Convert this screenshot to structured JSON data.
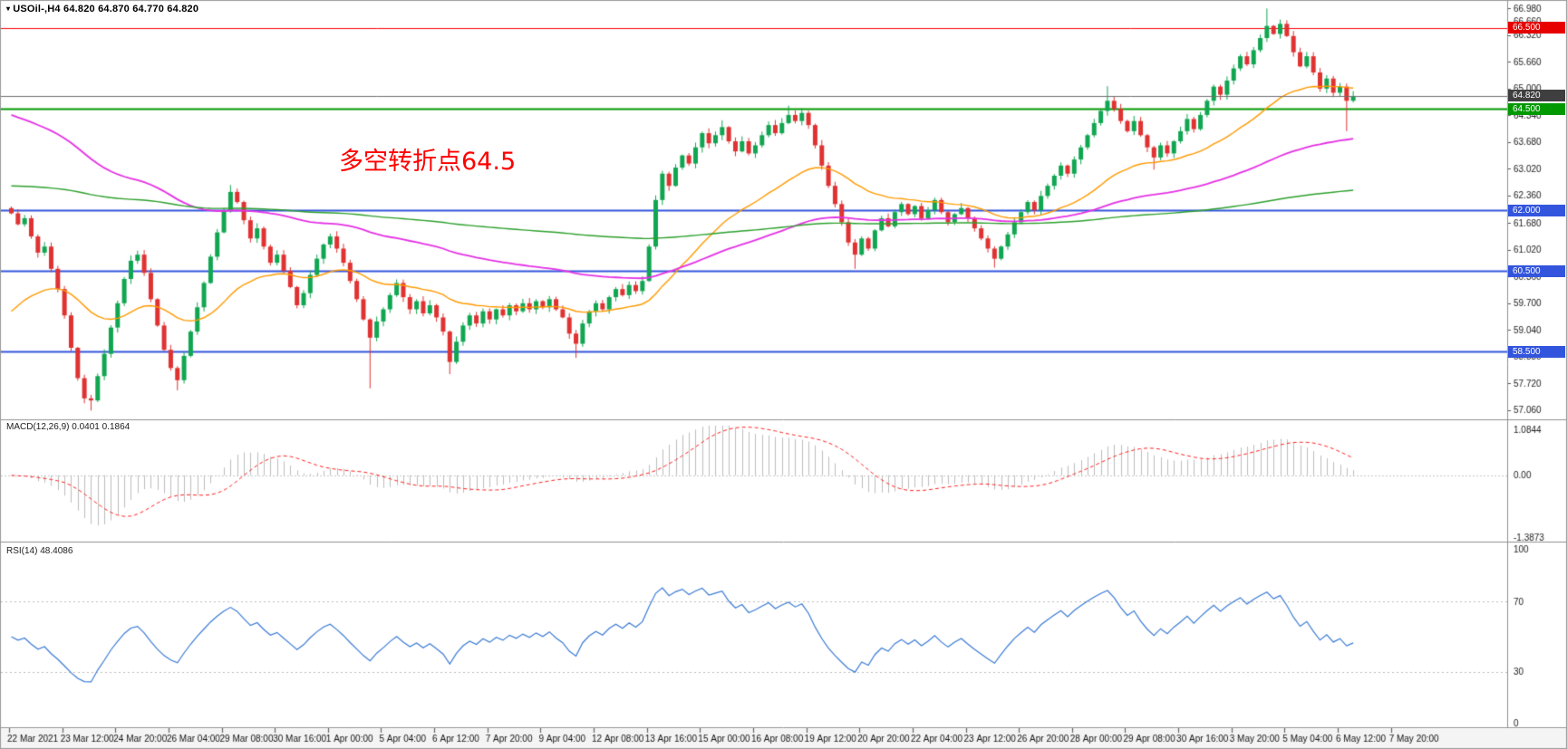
{
  "window": {
    "symbol_icon": "▾",
    "symbol_info": "USOil-,H4  64.820 64.870 64.770 64.820"
  },
  "annotation": {
    "text": "多空转折点64.5",
    "color": "#ff0000"
  },
  "panels": {
    "macd": {
      "label": "MACD(12,26,9) 0.0401 0.1864",
      "axis_labels": [
        "1.0844",
        "0.00",
        "-1.3873"
      ],
      "max": 1.0844,
      "min": -1.3873
    },
    "rsi": {
      "label": "RSI(14) 48.4086",
      "axis_labels": [
        "100",
        "70",
        "30",
        "0"
      ],
      "max": 100,
      "min": 0
    }
  },
  "price_axis": {
    "max": 67.1,
    "min": 56.9,
    "ticks": [
      "66.980",
      "66.660",
      "66.320",
      "65.660",
      "65.000",
      "64.340",
      "63.680",
      "63.020",
      "62.360",
      "61.680",
      "61.020",
      "60.360",
      "59.700",
      "59.040",
      "58.380",
      "57.720",
      "57.060"
    ]
  },
  "levels": [
    {
      "price": 66.5,
      "label": "66.500",
      "line_color": "#ff0000",
      "badge_color": "#e60000",
      "width": 1,
      "kind": "hline"
    },
    {
      "price": 64.82,
      "label": "64.820",
      "line_color": "#6e6e6e",
      "badge_color": "#3f3f3f",
      "width": 1,
      "kind": "price"
    },
    {
      "price": 64.5,
      "label": "64.500",
      "line_color": "#009900",
      "badge_color": "#009900",
      "width": 2,
      "kind": "hline"
    },
    {
      "price": 62.0,
      "label": "62.000",
      "line_color": "#3355dd",
      "badge_color": "#3355dd",
      "width": 2,
      "kind": "hline"
    },
    {
      "price": 60.5,
      "label": "60.500",
      "line_color": "#3355dd",
      "badge_color": "#3355dd",
      "width": 2,
      "kind": "hline"
    },
    {
      "price": 58.5,
      "label": "58.500",
      "line_color": "#3355dd",
      "badge_color": "#3355dd",
      "width": 2,
      "kind": "hline"
    }
  ],
  "time_axis": {
    "candles_per_label": 8,
    "labels": [
      "22 Mar 2021",
      "23 Mar 12:00",
      "24 Mar 20:00",
      "26 Mar 04:00",
      "29 Mar 08:00",
      "30 Mar 16:00",
      "1 Apr 00:00",
      "5 Apr 04:00",
      "6 Apr 12:00",
      "7 Apr 20:00",
      "9 Apr 04:00",
      "12 Apr 08:00",
      "13 Apr 16:00",
      "15 Apr 00:00",
      "16 Apr 08:00",
      "19 Apr 12:00",
      "20 Apr 20:00",
      "22 Apr 04:00",
      "23 Apr 12:00",
      "26 Apr 20:00",
      "28 Apr 00:00",
      "29 Apr 08:00",
      "30 Apr 16:00",
      "3 May 20:00",
      "5 May 04:00",
      "6 May 12:00",
      "7 May 20:00"
    ]
  },
  "chart_data": [
    {
      "type": "candlestick",
      "symbol": "USOil-",
      "timeframe": "H4",
      "title": "USOil-,H4",
      "current_bar": {
        "open": 64.82,
        "high": 64.87,
        "low": 64.77,
        "close": 64.82
      },
      "ylim": [
        56.9,
        67.1
      ],
      "first_open": 62.05,
      "up_color": "#11a651",
      "down_color": "#e03232",
      "closes": [
        61.92,
        61.65,
        61.8,
        61.35,
        60.95,
        61.1,
        60.55,
        60.05,
        59.4,
        58.6,
        57.85,
        57.35,
        57.3,
        57.9,
        58.45,
        59.1,
        59.7,
        60.3,
        60.75,
        60.9,
        60.45,
        59.8,
        59.15,
        58.55,
        58.1,
        57.8,
        58.4,
        59.0,
        59.6,
        60.2,
        60.85,
        61.45,
        62.0,
        62.45,
        62.2,
        61.75,
        61.3,
        61.55,
        61.1,
        60.7,
        60.9,
        60.5,
        60.1,
        59.65,
        59.95,
        60.4,
        60.8,
        61.15,
        61.35,
        61.05,
        60.7,
        60.25,
        59.8,
        59.3,
        58.85,
        59.25,
        59.55,
        59.9,
        60.2,
        59.85,
        59.55,
        59.75,
        59.45,
        59.65,
        59.35,
        59.0,
        58.25,
        58.75,
        59.15,
        59.4,
        59.2,
        59.5,
        59.3,
        59.55,
        59.4,
        59.65,
        59.5,
        59.7,
        59.55,
        59.75,
        59.6,
        59.8,
        59.55,
        59.35,
        58.95,
        58.7,
        59.2,
        59.5,
        59.7,
        59.55,
        59.85,
        60.05,
        59.9,
        60.15,
        60.0,
        60.25,
        61.1,
        62.25,
        62.9,
        62.6,
        63.05,
        63.35,
        63.15,
        63.55,
        63.9,
        63.65,
        63.85,
        64.05,
        63.7,
        63.45,
        63.7,
        63.4,
        63.6,
        63.85,
        64.1,
        63.9,
        64.15,
        64.35,
        64.2,
        64.4,
        64.1,
        63.6,
        63.1,
        62.6,
        62.15,
        61.7,
        61.2,
        60.9,
        61.3,
        61.05,
        61.5,
        61.8,
        61.6,
        61.95,
        62.15,
        61.9,
        62.1,
        61.8,
        62.0,
        62.25,
        61.95,
        61.7,
        61.9,
        62.05,
        61.8,
        61.55,
        61.3,
        61.05,
        60.8,
        61.1,
        61.4,
        61.7,
        61.95,
        62.2,
        62.0,
        62.35,
        62.6,
        62.85,
        63.1,
        62.9,
        63.25,
        63.55,
        63.85,
        64.15,
        64.45,
        64.7,
        64.5,
        64.2,
        63.95,
        64.2,
        63.85,
        63.55,
        63.3,
        63.6,
        63.4,
        63.7,
        63.95,
        64.25,
        64.0,
        64.35,
        64.7,
        65.05,
        64.85,
        65.2,
        65.5,
        65.8,
        65.6,
        65.95,
        66.25,
        66.55,
        66.35,
        66.6,
        66.3,
        65.9,
        65.55,
        65.8,
        65.4,
        65.0,
        65.25,
        64.9,
        65.05,
        64.7,
        64.82
      ],
      "wick_overrides": {
        "12": {
          "l": 57.05
        },
        "25": {
          "l": 57.55
        },
        "33": {
          "h": 62.62
        },
        "54": {
          "l": 57.6
        },
        "66": {
          "l": 57.95
        },
        "85": {
          "l": 58.35
        },
        "107": {
          "h": 64.22
        },
        "117": {
          "h": 64.58
        },
        "127": {
          "l": 60.55
        },
        "148": {
          "l": 60.58
        },
        "165": {
          "h": 65.06
        },
        "172": {
          "l": 63.0
        },
        "189": {
          "h": 66.98
        },
        "201": {
          "l": 63.95
        }
      },
      "moving_averages": [
        {
          "name": "ma-fast",
          "period": 30,
          "seed": 59.5,
          "color": "#ff9a00",
          "width": 1.4
        },
        {
          "name": "ma-mid",
          "period": 90,
          "seed": 64.35,
          "color": "#e531e5",
          "width": 1.8
        },
        {
          "name": "ma-slow",
          "period": 300,
          "seed": 62.6,
          "color": "#2ca02c",
          "width": 1.4
        }
      ]
    },
    {
      "type": "macd",
      "params": [
        12,
        26,
        9
      ],
      "current_main": 0.0401,
      "current_signal": 0.1864,
      "ylim": [
        -1.3873,
        1.0844
      ],
      "histogram_color": "#bdbdbd",
      "signal_color": "#ff2222"
    },
    {
      "type": "rsi",
      "period": 14,
      "current": 48.4086,
      "ylim": [
        0,
        100
      ],
      "levels": [
        30,
        70
      ],
      "line_color": "#3a7bd5"
    }
  ]
}
